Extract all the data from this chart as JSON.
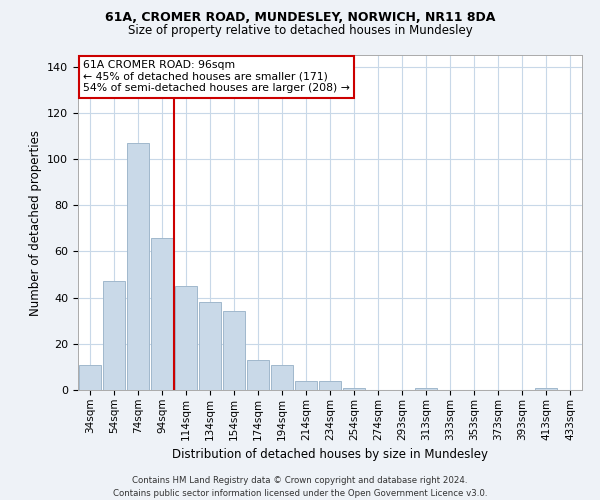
{
  "title1": "61A, CROMER ROAD, MUNDESLEY, NORWICH, NR11 8DA",
  "title2": "Size of property relative to detached houses in Mundesley",
  "xlabel": "Distribution of detached houses by size in Mundesley",
  "ylabel": "Number of detached properties",
  "bar_labels": [
    "34sqm",
    "54sqm",
    "74sqm",
    "94sqm",
    "114sqm",
    "134sqm",
    "154sqm",
    "174sqm",
    "194sqm",
    "214sqm",
    "234sqm",
    "254sqm",
    "274sqm",
    "293sqm",
    "313sqm",
    "333sqm",
    "353sqm",
    "373sqm",
    "393sqm",
    "413sqm",
    "433sqm"
  ],
  "bar_values": [
    11,
    47,
    107,
    66,
    45,
    38,
    34,
    13,
    11,
    4,
    4,
    1,
    0,
    0,
    1,
    0,
    0,
    0,
    0,
    1,
    0
  ],
  "bar_color": "#c9d9e8",
  "bar_edgecolor": "#a0b8cc",
  "vline_x": 3.5,
  "vline_color": "#cc0000",
  "annotation_text": "61A CROMER ROAD: 96sqm\n← 45% of detached houses are smaller (171)\n54% of semi-detached houses are larger (208) →",
  "annotation_box_color": "#ffffff",
  "annotation_box_edgecolor": "#cc0000",
  "ylim": [
    0,
    145
  ],
  "yticks": [
    0,
    20,
    40,
    60,
    80,
    100,
    120,
    140
  ],
  "footer": "Contains HM Land Registry data © Crown copyright and database right 2024.\nContains public sector information licensed under the Open Government Licence v3.0.",
  "bg_color": "#eef2f7",
  "plot_bg_color": "#ffffff",
  "grid_color": "#c8d8e8"
}
